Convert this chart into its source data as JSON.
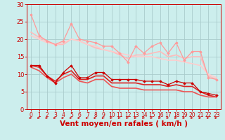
{
  "background_color": "#cceeed",
  "grid_color": "#aacccc",
  "xlabel": "Vent moyen/en rafales ( km/h )",
  "xlabel_color": "#cc0000",
  "xlabel_fontsize": 7.5,
  "tick_color": "#cc0000",
  "xlim": [
    -0.5,
    23.5
  ],
  "ylim": [
    0,
    30
  ],
  "yticks": [
    0,
    5,
    10,
    15,
    20,
    25,
    30
  ],
  "xticks": [
    0,
    1,
    2,
    3,
    4,
    5,
    6,
    7,
    8,
    9,
    10,
    11,
    12,
    13,
    14,
    15,
    16,
    17,
    18,
    19,
    20,
    21,
    22,
    23
  ],
  "line1_x": [
    0,
    1,
    2,
    3,
    4,
    5,
    6,
    7,
    8,
    9,
    10,
    11,
    12,
    13,
    14,
    15,
    16,
    17,
    18,
    19,
    20,
    21,
    22,
    23
  ],
  "line1_y": [
    27,
    21,
    19.5,
    18.5,
    19.5,
    24.5,
    20,
    19.5,
    19,
    18,
    18,
    16,
    13.5,
    18,
    16,
    18,
    19,
    16,
    19,
    14,
    16.5,
    16.5,
    9,
    8.5
  ],
  "line1_color": "#ff9999",
  "line1_marker": "D",
  "line1_markersize": 1.8,
  "line1_linewidth": 0.9,
  "line2_x": [
    0,
    1,
    2,
    3,
    4,
    5,
    6,
    7,
    8,
    9,
    10,
    11,
    12,
    13,
    14,
    15,
    16,
    17,
    18,
    19,
    20,
    21,
    22,
    23
  ],
  "line2_y": [
    22,
    20.5,
    19.5,
    18.5,
    18.5,
    20,
    19.5,
    18.5,
    17.5,
    17,
    16.5,
    15.5,
    14.5,
    15.5,
    15.5,
    16,
    16.5,
    15,
    15.5,
    14.5,
    15,
    15,
    9.5,
    8.5
  ],
  "line2_color": "#ffbbbb",
  "line2_linewidth": 1.2,
  "line3_x": [
    0,
    1,
    2,
    3,
    4,
    5,
    6,
    7,
    8,
    9,
    10,
    11,
    12,
    13,
    14,
    15,
    16,
    17,
    18,
    19,
    20,
    21,
    22,
    23
  ],
  "line3_y": [
    21,
    20,
    19,
    18.5,
    19,
    20,
    19.5,
    18.5,
    18,
    17,
    16.5,
    16,
    15.5,
    15,
    15,
    15,
    14.5,
    14,
    14,
    13.5,
    13,
    12.5,
    10,
    9
  ],
  "line3_color": "#ffcccc",
  "line3_linewidth": 1.2,
  "line4_x": [
    0,
    1,
    2,
    3,
    4,
    5,
    6,
    7,
    8,
    9,
    10,
    11,
    12,
    13,
    14,
    15,
    16,
    17,
    18,
    19,
    20,
    21,
    22,
    23
  ],
  "line4_y": [
    12.5,
    12.5,
    9.5,
    7.5,
    10.5,
    12.5,
    9,
    9,
    10.5,
    10.5,
    8.5,
    8.5,
    8.5,
    8.5,
    8,
    8,
    8,
    7,
    8,
    7.5,
    7.5,
    5,
    4.5,
    4
  ],
  "line4_color": "#cc0000",
  "line4_marker": "D",
  "line4_markersize": 1.8,
  "line4_linewidth": 0.9,
  "line5_x": [
    0,
    1,
    2,
    3,
    4,
    5,
    6,
    7,
    8,
    9,
    10,
    11,
    12,
    13,
    14,
    15,
    16,
    17,
    18,
    19,
    20,
    21,
    22,
    23
  ],
  "line5_y": [
    12.5,
    12,
    9.5,
    8,
    10,
    11,
    8.5,
    8.5,
    9.5,
    9.5,
    7.5,
    7.5,
    7.5,
    7.5,
    7,
    7,
    7,
    6.5,
    7,
    6.5,
    6.5,
    5,
    4,
    3.5
  ],
  "line5_color": "#dd2222",
  "line5_linewidth": 1.2,
  "line6_x": [
    0,
    1,
    2,
    3,
    4,
    5,
    6,
    7,
    8,
    9,
    10,
    11,
    12,
    13,
    14,
    15,
    16,
    17,
    18,
    19,
    20,
    21,
    22,
    23
  ],
  "line6_y": [
    12,
    11,
    9,
    7.5,
    9,
    10,
    8,
    7.5,
    8.5,
    8.5,
    6.5,
    6,
    6,
    6,
    5.5,
    5.5,
    5.5,
    5.5,
    5.5,
    5,
    5,
    4,
    3.5,
    3.5
  ],
  "line6_color": "#ee5555",
  "line6_linewidth": 1.2,
  "arrow_color": "#cc0000"
}
